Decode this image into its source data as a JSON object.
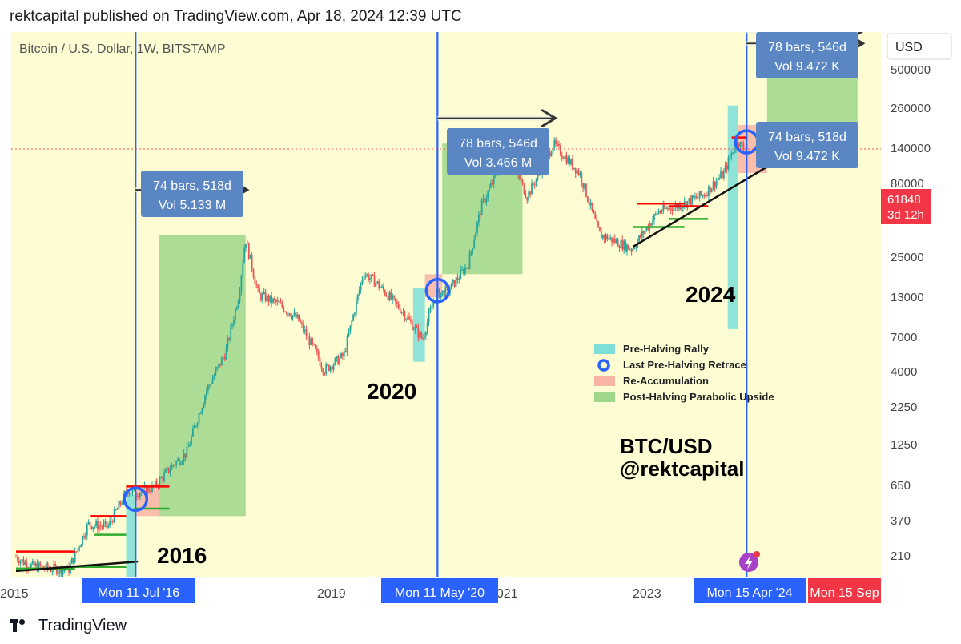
{
  "header": {
    "publish_line": "rektcapital published on TradingView.com, Apr 18, 2024 12:39 UTC"
  },
  "footer": {
    "brand": "TradingView"
  },
  "colors": {
    "background": "#fdfcd3",
    "axis_bg": "#ffffff",
    "bull": "#26a69a",
    "bear": "#ef5350",
    "halving_line": "#2962ff",
    "date_pill": "#2962ff",
    "red_pill": "#f23645",
    "pre_halving": "#7ddfd7",
    "re_accum": "#f8b4a4",
    "post_halving": "#9ed68a",
    "measure_box": "#5b86c4",
    "support_red": "#ff0000",
    "support_green": "#2eaa2e"
  },
  "chart_data": {
    "type": "candlestick",
    "symbol_line": "Bitcoin / U.S. Dollar, 1W, BITSTAMP",
    "currency_button": "USD",
    "y_scale": "log",
    "y_ticks": [
      "500000",
      "260000",
      "140000",
      "80000",
      "25000",
      "13000",
      "7000",
      "4000",
      "2250",
      "1250",
      "650",
      "370",
      "210"
    ],
    "x_ticks": [
      "2015",
      "2019",
      "2021",
      "2023"
    ],
    "last_price": "61848",
    "countdown": "3d 12h",
    "halving_dates": [
      "Mon 11 Jul '16",
      "Mon 11 May '20",
      "Mon 15 Apr '24"
    ],
    "projected_date": "Mon 15 Sep",
    "cycle_labels": [
      "2016",
      "2020",
      "2024"
    ],
    "watermark": [
      "BTC/USD",
      "@rektcapital"
    ],
    "measures": [
      {
        "bars_days": "74 bars, 518d",
        "volume": "Vol 5.133 M"
      },
      {
        "bars_days": "78 bars, 546d",
        "volume": "Vol 3.466 M"
      },
      {
        "bars_days": "78 bars, 546d",
        "volume": "Vol 9.472 K"
      },
      {
        "bars_days": "74 bars, 518d",
        "volume": "Vol 9.472 K"
      }
    ],
    "legend": [
      {
        "label": "Pre-Halving Rally",
        "color": "#7ddfd7",
        "marker": "square"
      },
      {
        "label": "Last Pre-Halving Retrace",
        "color": "#2962ff",
        "marker": "ring"
      },
      {
        "label": "Re-Accumulation",
        "color": "#f8b4a4",
        "marker": "square"
      },
      {
        "label": "Post-Halving Parabolic Upside",
        "color": "#9ed68a",
        "marker": "square"
      }
    ],
    "price_path": [
      [
        "2015-01",
        280
      ],
      [
        "2015-03",
        250
      ],
      [
        "2015-06",
        240
      ],
      [
        "2015-09",
        235
      ],
      [
        "2015-12",
        430
      ],
      [
        "2016-03",
        415
      ],
      [
        "2016-06",
        680
      ],
      [
        "2016-07",
        650
      ],
      [
        "2016-10",
        700
      ],
      [
        "2017-01",
        950
      ],
      [
        "2017-03",
        1100
      ],
      [
        "2017-06",
        2500
      ],
      [
        "2017-09",
        4200
      ],
      [
        "2017-11",
        9000
      ],
      [
        "2017-12",
        19000
      ],
      [
        "2018-02",
        9000
      ],
      [
        "2018-05",
        8000
      ],
      [
        "2018-08",
        6500
      ],
      [
        "2018-11",
        4000
      ],
      [
        "2018-12",
        3300
      ],
      [
        "2019-03",
        4000
      ],
      [
        "2019-06",
        12000
      ],
      [
        "2019-08",
        10500
      ],
      [
        "2019-12",
        7200
      ],
      [
        "2020-03",
        5000
      ],
      [
        "2020-05",
        9000
      ],
      [
        "2020-07",
        9500
      ],
      [
        "2020-10",
        13500
      ],
      [
        "2020-12",
        29000
      ],
      [
        "2021-04",
        60000
      ],
      [
        "2021-07",
        33000
      ],
      [
        "2021-11",
        66000
      ],
      [
        "2022-03",
        45000
      ],
      [
        "2022-06",
        20000
      ],
      [
        "2022-11",
        16500
      ],
      [
        "2023-03",
        27000
      ],
      [
        "2023-07",
        30000
      ],
      [
        "2023-10",
        34000
      ],
      [
        "2024-01",
        45000
      ],
      [
        "2024-03",
        70000
      ],
      [
        "2024-04",
        61848
      ]
    ]
  }
}
